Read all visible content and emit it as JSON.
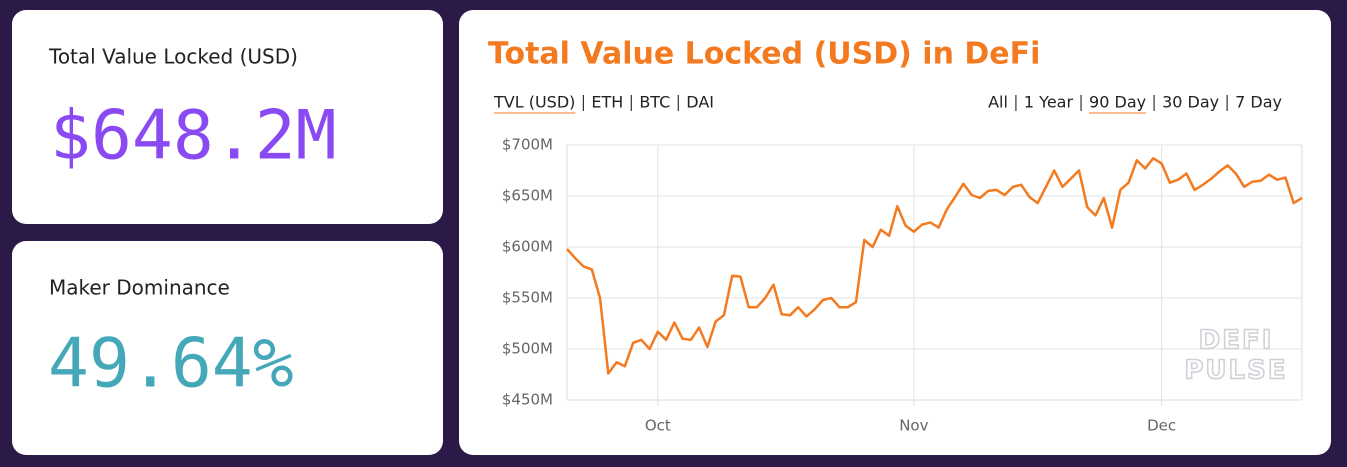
{
  "cards": [
    {
      "label": "Total Value Locked (USD)",
      "value": "$648.2M",
      "color": "#8a4af3"
    },
    {
      "label": "Maker Dominance",
      "value": "49.64%",
      "color": "#45a8b8"
    }
  ],
  "units": [
    "TVL (USD)",
    "ETH",
    "BTC",
    "DAI"
  ],
  "active_unit": 0,
  "ranges": [
    "All",
    "1 Year",
    "90 Day",
    "30 Day",
    "7 Day"
  ],
  "active_range": 2,
  "watermark": [
    "DEFI",
    "PULSE"
  ],
  "chart_data": {
    "type": "line",
    "title": "Total Value Locked (USD) in DeFi",
    "x": [
      0,
      1,
      2,
      3,
      4,
      5,
      6,
      7,
      8,
      9,
      10,
      11,
      12,
      13,
      14,
      15,
      16,
      17,
      18,
      19,
      20,
      21,
      22,
      23,
      24,
      25,
      26,
      27,
      28,
      29,
      30,
      31,
      32,
      33,
      34,
      35,
      36,
      37,
      38,
      39,
      40,
      41,
      42,
      43,
      44,
      45,
      46,
      47,
      48,
      49,
      50,
      51,
      52,
      53,
      54,
      55,
      56,
      57,
      58,
      59,
      60,
      61,
      62,
      63,
      64,
      65,
      66,
      67,
      68,
      69,
      70,
      71,
      72,
      73,
      74,
      75,
      76,
      77,
      78,
      79,
      80,
      81,
      82,
      83,
      84,
      85,
      86,
      87,
      88,
      89
    ],
    "series": [
      {
        "name": "TVL (USD)",
        "color": "#f47a20",
        "values": [
          598,
          589,
          581,
          578,
          550,
          476,
          487,
          483,
          506,
          509,
          500,
          517,
          509,
          526,
          510,
          509,
          521,
          502,
          527,
          533,
          572,
          571,
          541,
          541,
          550,
          563,
          534,
          533,
          541,
          532,
          539,
          548,
          550,
          541,
          541,
          546,
          607,
          600,
          617,
          611,
          640,
          621,
          615,
          622,
          624,
          619,
          637,
          649,
          662,
          651,
          648,
          655,
          656,
          651,
          659,
          661,
          649,
          643,
          659,
          675,
          659,
          667,
          675,
          639,
          631,
          648,
          619,
          656,
          663,
          685,
          677,
          687,
          682,
          663,
          666,
          672,
          656,
          661,
          667,
          674,
          680,
          672,
          659,
          664,
          665,
          671,
          666,
          668,
          643,
          648
        ]
      }
    ],
    "xlim": [
      0,
      89
    ],
    "xticks": [
      {
        "value": 11,
        "label": "Oct"
      },
      {
        "value": 42,
        "label": "Nov"
      },
      {
        "value": 72,
        "label": "Dec"
      }
    ],
    "ylim": [
      450,
      700
    ],
    "yticks": [
      {
        "value": 450,
        "label": "$450M"
      },
      {
        "value": 500,
        "label": "$500M"
      },
      {
        "value": 550,
        "label": "$550M"
      },
      {
        "value": 600,
        "label": "$600M"
      },
      {
        "value": 650,
        "label": "$650M"
      },
      {
        "value": 700,
        "label": "$700M"
      }
    ],
    "grid": true
  }
}
